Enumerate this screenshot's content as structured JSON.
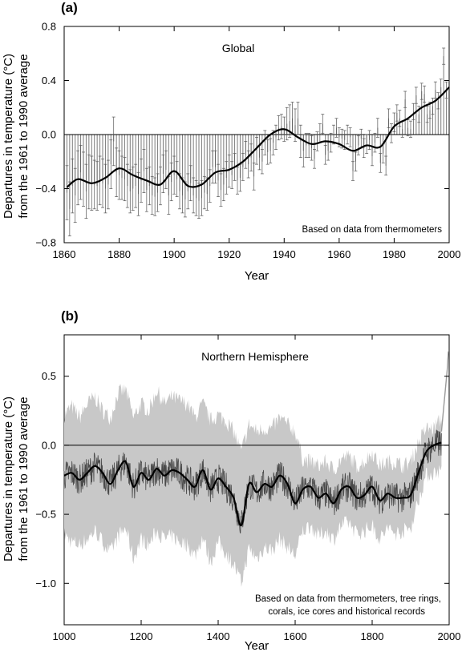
{
  "chart_data": [
    {
      "panel": "(a)",
      "type": "bar",
      "title": "Global",
      "annotation": "Based on data from thermometers",
      "xlabel": "Year",
      "ylabel": [
        "Departures in temperature (°C)",
        "from the 1961 to 1990 average"
      ],
      "xlim": [
        1860,
        2000
      ],
      "ylim": [
        -0.8,
        0.8
      ],
      "xticks": [
        1860,
        1880,
        1900,
        1920,
        1940,
        1960,
        1980,
        2000
      ],
      "yticks": [
        0.8,
        0.4,
        0.0,
        -0.4,
        -0.8
      ],
      "ytick_labels": [
        "0.8",
        "0.4",
        "0.0",
        "−0.4",
        "−0.8"
      ],
      "grid": false,
      "smooth_color": "#000000",
      "bar_color": "#7a7a7a",
      "series": [
        {
          "kind": "smoothed_curve",
          "x": [
            1861,
            1865,
            1870,
            1875,
            1880,
            1885,
            1890,
            1895,
            1900,
            1905,
            1910,
            1915,
            1920,
            1925,
            1930,
            1935,
            1940,
            1945,
            1950,
            1955,
            1960,
            1965,
            1970,
            1975,
            1980,
            1985,
            1990,
            1995,
            2000
          ],
          "y": [
            -0.39,
            -0.33,
            -0.36,
            -0.32,
            -0.25,
            -0.3,
            -0.34,
            -0.37,
            -0.27,
            -0.38,
            -0.37,
            -0.28,
            -0.26,
            -0.2,
            -0.1,
            0.0,
            0.04,
            -0.02,
            -0.07,
            -0.05,
            -0.07,
            -0.12,
            -0.08,
            -0.09,
            0.06,
            0.12,
            0.2,
            0.25,
            0.35
          ]
        },
        {
          "kind": "annual_bars_with_error_bars",
          "x_start": 1861,
          "x_end": 1999,
          "values": [
            -0.43,
            -0.55,
            -0.38,
            -0.45,
            -0.32,
            -0.28,
            -0.33,
            -0.42,
            -0.35,
            -0.36,
            -0.37,
            -0.38,
            -0.34,
            -0.36,
            -0.4,
            -0.37,
            -0.22,
            -0.05,
            -0.28,
            -0.3,
            -0.32,
            -0.33,
            -0.38,
            -0.42,
            -0.4,
            -0.38,
            -0.44,
            -0.34,
            -0.27,
            -0.41,
            -0.38,
            -0.45,
            -0.46,
            -0.43,
            -0.38,
            -0.29,
            -0.26,
            -0.45,
            -0.35,
            -0.3,
            -0.33,
            -0.42,
            -0.45,
            -0.48,
            -0.42,
            -0.36,
            -0.45,
            -0.47,
            -0.49,
            -0.47,
            -0.43,
            -0.44,
            -0.38,
            -0.24,
            -0.24,
            -0.34,
            -0.41,
            -0.37,
            -0.32,
            -0.27,
            -0.3,
            -0.24,
            -0.34,
            -0.32,
            -0.24,
            -0.15,
            -0.22,
            -0.17,
            -0.31,
            -0.12,
            -0.17,
            -0.2,
            -0.06,
            -0.13,
            -0.12,
            -0.06,
            -0.02,
            0.05,
            0.06,
            0.04,
            0.08,
            0.1,
            0.12,
            0.07,
            0.12,
            -0.05,
            -0.12,
            -0.08,
            -0.08,
            -0.1,
            -0.18,
            -0.05,
            0.01,
            0.08,
            -0.15,
            -0.12,
            -0.06,
            0.0,
            0.05,
            -0.02,
            -0.03,
            -0.04,
            0.0,
            -0.02,
            -0.27,
            -0.2,
            -0.08,
            -0.03,
            -0.1,
            -0.07,
            -0.04,
            -0.16,
            -0.06,
            0.05,
            -0.21,
            -0.14,
            -0.23,
            0.12,
            0.01,
            0.09,
            0.16,
            0.12,
            0.04,
            0.26,
            0.05,
            0.04,
            0.17,
            0.29,
            0.15,
            0.32,
            0.3,
            0.15,
            0.18,
            0.21,
            0.33,
            0.25,
            0.35,
            0.58,
            0.33
          ],
          "error_halfwidth": [
            0.2,
            0.2,
            0.2,
            0.2,
            0.2,
            0.2,
            0.2,
            0.2,
            0.2,
            0.2,
            0.18,
            0.18,
            0.18,
            0.18,
            0.18,
            0.18,
            0.18,
            0.18,
            0.18,
            0.18,
            0.16,
            0.16,
            0.16,
            0.16,
            0.16,
            0.16,
            0.16,
            0.16,
            0.16,
            0.16,
            0.14,
            0.14,
            0.14,
            0.14,
            0.14,
            0.14,
            0.14,
            0.14,
            0.14,
            0.14,
            0.13,
            0.13,
            0.13,
            0.13,
            0.13,
            0.13,
            0.13,
            0.13,
            0.13,
            0.13,
            0.12,
            0.12,
            0.12,
            0.12,
            0.12,
            0.12,
            0.12,
            0.12,
            0.12,
            0.12,
            0.1,
            0.1,
            0.1,
            0.1,
            0.1,
            0.1,
            0.1,
            0.1,
            0.1,
            0.1,
            0.09,
            0.09,
            0.09,
            0.09,
            0.09,
            0.09,
            0.09,
            0.09,
            0.09,
            0.09,
            0.12,
            0.12,
            0.12,
            0.12,
            0.12,
            0.12,
            0.12,
            0.09,
            0.09,
            0.09,
            0.07,
            0.07,
            0.07,
            0.07,
            0.07,
            0.07,
            0.07,
            0.07,
            0.07,
            0.07,
            0.07,
            0.07,
            0.07,
            0.07,
            0.07,
            0.07,
            0.07,
            0.07,
            0.07,
            0.07,
            0.07,
            0.07,
            0.07,
            0.07,
            0.07,
            0.07,
            0.07,
            0.07,
            0.07,
            0.07,
            0.06,
            0.06,
            0.06,
            0.06,
            0.06,
            0.06,
            0.06,
            0.06,
            0.06,
            0.06,
            0.06,
            0.06,
            0.06,
            0.06,
            0.06,
            0.06,
            0.06,
            0.06,
            0.06
          ]
        }
      ]
    },
    {
      "panel": "(b)",
      "type": "line",
      "title": "Northern Hemisphere",
      "annotation": [
        "Based on data from thermometers, tree rings,",
        "corals, ice cores and historical records"
      ],
      "xlabel": "Year",
      "ylabel": [
        "Departures in temperature (°C)",
        "from the 1961 to 1990 average"
      ],
      "xlim": [
        1000,
        2000
      ],
      "ylim": [
        -1.3,
        0.8
      ],
      "xticks": [
        1000,
        1200,
        1400,
        1600,
        1800,
        2000
      ],
      "yticks": [
        0.5,
        0.0,
        -0.5,
        -1.0
      ],
      "ytick_labels": [
        "0.5",
        "0.0",
        "−0.5",
        "−1.0"
      ],
      "grid": false,
      "band_color": "#c8c8c8",
      "annual_color": "#4a4a4a",
      "smooth_color": "#000000",
      "series": [
        {
          "kind": "smoothed_curve",
          "x": [
            1000,
            1020,
            1040,
            1060,
            1080,
            1100,
            1120,
            1140,
            1160,
            1180,
            1200,
            1220,
            1240,
            1260,
            1280,
            1300,
            1320,
            1340,
            1360,
            1380,
            1400,
            1420,
            1440,
            1460,
            1480,
            1500,
            1520,
            1540,
            1560,
            1580,
            1600,
            1620,
            1640,
            1660,
            1680,
            1700,
            1720,
            1740,
            1760,
            1780,
            1800,
            1820,
            1840,
            1860,
            1880,
            1900,
            1920,
            1940,
            1960,
            1980
          ],
          "y": [
            -0.22,
            -0.2,
            -0.25,
            -0.2,
            -0.15,
            -0.2,
            -0.28,
            -0.18,
            -0.12,
            -0.3,
            -0.2,
            -0.25,
            -0.17,
            -0.22,
            -0.18,
            -0.2,
            -0.25,
            -0.3,
            -0.18,
            -0.32,
            -0.24,
            -0.3,
            -0.38,
            -0.58,
            -0.28,
            -0.34,
            -0.28,
            -0.3,
            -0.22,
            -0.28,
            -0.42,
            -0.32,
            -0.3,
            -0.38,
            -0.35,
            -0.42,
            -0.32,
            -0.3,
            -0.38,
            -0.36,
            -0.3,
            -0.4,
            -0.35,
            -0.38,
            -0.38,
            -0.36,
            -0.2,
            -0.05,
            0.0,
            0.02
          ]
        },
        {
          "kind": "uncertainty_band",
          "x": [
            1000,
            1020,
            1040,
            1060,
            1080,
            1100,
            1120,
            1140,
            1160,
            1180,
            1200,
            1220,
            1240,
            1260,
            1280,
            1300,
            1320,
            1340,
            1360,
            1380,
            1400,
            1420,
            1440,
            1460,
            1480,
            1500,
            1520,
            1540,
            1560,
            1580,
            1600,
            1620,
            1640,
            1660,
            1680,
            1700,
            1720,
            1740,
            1760,
            1780,
            1800,
            1820,
            1840,
            1860,
            1880,
            1900,
            1920,
            1940,
            1960,
            1980
          ],
          "upper": [
            0.22,
            0.28,
            0.2,
            0.3,
            0.35,
            0.25,
            0.2,
            0.38,
            0.4,
            0.2,
            0.3,
            0.25,
            0.4,
            0.3,
            0.35,
            0.32,
            0.3,
            0.2,
            0.3,
            0.18,
            0.22,
            0.18,
            0.1,
            -0.05,
            0.15,
            0.1,
            0.12,
            0.12,
            0.2,
            0.15,
            0.1,
            -0.1,
            -0.12,
            -0.15,
            -0.12,
            -0.18,
            -0.1,
            -0.08,
            -0.15,
            -0.12,
            -0.05,
            -0.15,
            -0.12,
            -0.12,
            -0.15,
            -0.12,
            0.02,
            0.12,
            0.12,
            0.2
          ],
          "lower": [
            -0.65,
            -0.7,
            -0.72,
            -0.68,
            -0.62,
            -0.7,
            -0.78,
            -0.66,
            -0.6,
            -0.82,
            -0.68,
            -0.72,
            -0.62,
            -0.68,
            -0.66,
            -0.7,
            -0.72,
            -0.8,
            -0.66,
            -0.85,
            -0.7,
            -0.78,
            -0.86,
            -1.0,
            -0.75,
            -0.82,
            -0.74,
            -0.76,
            -0.68,
            -0.74,
            -0.8,
            -0.62,
            -0.58,
            -0.66,
            -0.62,
            -0.68,
            -0.58,
            -0.56,
            -0.64,
            -0.62,
            -0.58,
            -0.68,
            -0.6,
            -0.64,
            -0.62,
            -0.6,
            -0.4,
            -0.22,
            -0.2,
            -0.18
          ]
        },
        {
          "kind": "instrumental_record",
          "x": [
            1980,
            1985,
            1990,
            1995,
            1998
          ],
          "y": [
            0.1,
            0.25,
            0.4,
            0.55,
            0.68
          ]
        }
      ]
    }
  ]
}
